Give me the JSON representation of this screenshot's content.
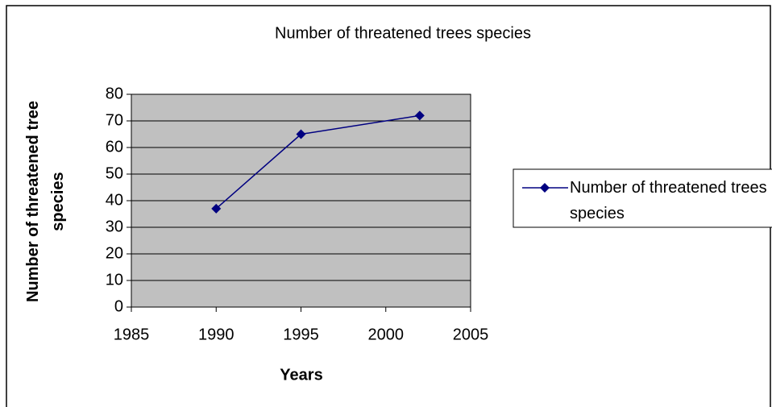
{
  "chart_data": {
    "type": "line",
    "title": "Number of threatened trees species",
    "x_label": "Years",
    "y_label": "Number of threatened tree species",
    "x": [
      1990,
      1995,
      2002
    ],
    "series": [
      {
        "name": "Number of threatened trees species",
        "color": "#000080",
        "values": [
          37,
          65,
          72
        ]
      }
    ],
    "xlim": [
      1985,
      2005
    ],
    "xticks": [
      1985,
      1990,
      1995,
      2000,
      2005
    ],
    "ylim": [
      0,
      80
    ],
    "yticks": [
      0,
      10,
      20,
      30,
      40,
      50,
      60,
      70,
      80
    ],
    "grid": true,
    "legend": "right"
  }
}
